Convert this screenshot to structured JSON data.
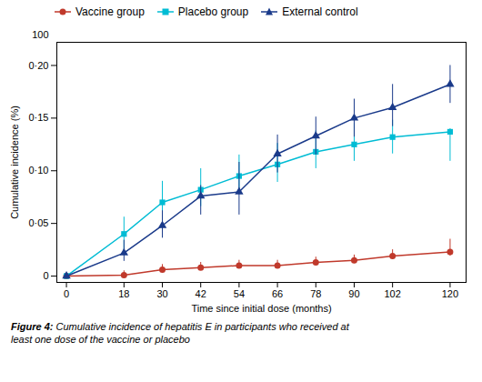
{
  "chart_data": {
    "type": "line",
    "x": [
      0,
      18,
      30,
      42,
      54,
      66,
      78,
      90,
      102,
      120
    ],
    "series": [
      {
        "name": "Vaccine group",
        "color": "#c0392b",
        "marker": "circle",
        "values": [
          0.0,
          0.001,
          0.006,
          0.008,
          0.01,
          0.01,
          0.013,
          0.015,
          0.019,
          0.023
        ],
        "yerr_lo": [
          0.0,
          0.001,
          0.002,
          0.002,
          0.003,
          0.003,
          0.003,
          0.003,
          0.003,
          0.004
        ],
        "yerr_hi": [
          0.0,
          0.004,
          0.005,
          0.005,
          0.005,
          0.005,
          0.005,
          0.005,
          0.006,
          0.012
        ]
      },
      {
        "name": "Placebo group",
        "color": "#00bcd4",
        "marker": "square",
        "values": [
          0.0,
          0.04,
          0.07,
          0.082,
          0.095,
          0.106,
          0.118,
          0.125,
          0.132,
          0.137
        ],
        "yerr_lo": [
          0.0,
          0.015,
          0.017,
          0.016,
          0.014,
          0.017,
          0.016,
          0.016,
          0.016,
          0.028
        ],
        "yerr_hi": [
          0.0,
          0.016,
          0.02,
          0.02,
          0.02,
          0.02,
          0.02,
          0.02,
          0.016,
          0.003
        ]
      },
      {
        "name": "External control",
        "color": "#1a3a8a",
        "marker": "triangle",
        "values": [
          0.0,
          0.022,
          0.048,
          0.076,
          0.08,
          0.116,
          0.133,
          0.15,
          0.16,
          0.182
        ],
        "yerr_lo": [
          0.0,
          0.008,
          0.012,
          0.018,
          0.022,
          0.018,
          0.018,
          0.018,
          0.018,
          0.018
        ],
        "yerr_hi": [
          0.0,
          0.012,
          0.014,
          0.01,
          0.028,
          0.018,
          0.018,
          0.018,
          0.022,
          0.018
        ]
      }
    ],
    "xlabel": "Time since initial dose (months)",
    "ylabel": "Cumulative incidence (%)",
    "xlim": [
      -3,
      125
    ],
    "ylim": [
      -0.006,
      0.222
    ],
    "xticks": [
      0,
      18,
      30,
      42,
      54,
      66,
      78,
      90,
      102,
      120
    ],
    "yticks": [
      0,
      {
        "value": 0.05,
        "label": "0·05"
      },
      {
        "value": 0.1,
        "label": "0·10"
      },
      {
        "value": 0.15,
        "label": "0·15"
      },
      {
        "value": 0.2,
        "label": "0·20"
      }
    ],
    "grid": false,
    "legend": "upper left",
    "annotations": [
      {
        "text": "100"
      }
    ],
    "caption": "Figure 4: Cumulative incidence of hepatitis E in participants who received at\nleast one dose of the vaccine or placebo"
  }
}
